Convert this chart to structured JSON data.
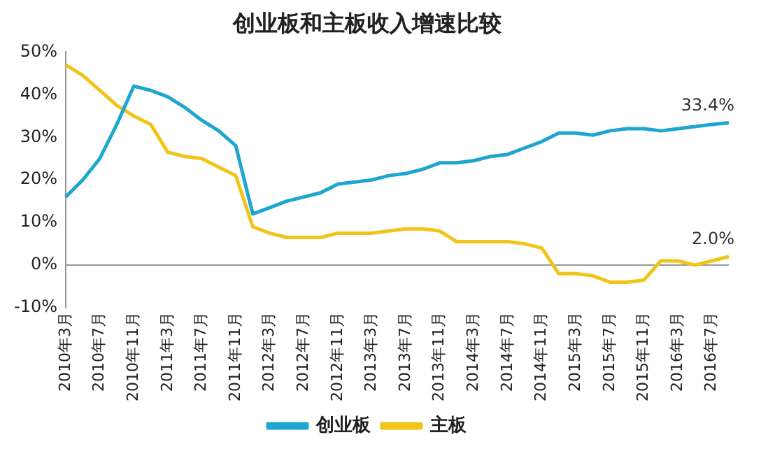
{
  "chart_data": {
    "type": "line",
    "title": "创业板和主板收入增速比较",
    "categories": [
      "2010年3月",
      null,
      "2010年7月",
      null,
      "2010年11月",
      null,
      "2011年3月",
      null,
      "2011年7月",
      null,
      "2011年11月",
      null,
      "2012年3月",
      null,
      "2012年7月",
      null,
      "2012年11月",
      null,
      "2013年3月",
      null,
      "2013年7月",
      null,
      "2013年11月",
      null,
      "2014年3月",
      null,
      "2014年7月",
      null,
      "2014年11月",
      null,
      "2015年3月",
      null,
      "2015年7月",
      null,
      "2015年11月",
      null,
      "2016年3月",
      null,
      "2016年7月",
      null
    ],
    "series": [
      {
        "name": "创业板",
        "color": "#1fa6d0",
        "values": [
          16,
          20,
          25,
          33,
          42,
          41,
          39.5,
          37,
          34,
          31.5,
          28,
          12,
          13.5,
          15,
          16,
          17,
          19,
          19.5,
          20,
          21,
          21.5,
          22.5,
          24,
          24,
          24.5,
          25.5,
          26,
          27.5,
          29,
          31,
          31,
          30.5,
          31.5,
          32,
          32,
          31.5,
          32,
          32.5,
          33,
          33.4
        ],
        "value_labels": [
          null,
          null,
          null,
          null,
          null,
          null,
          null,
          null,
          null,
          null,
          null,
          null,
          null,
          null,
          null,
          null,
          null,
          null,
          null,
          null,
          null,
          null,
          null,
          null,
          null,
          null,
          null,
          null,
          null,
          null,
          null,
          null,
          null,
          null,
          null,
          null,
          null,
          null,
          null,
          "33.4%"
        ]
      },
      {
        "name": "主板",
        "color": "#f0c419",
        "values": [
          47,
          44.5,
          41,
          37.5,
          35,
          33,
          26.5,
          25.5,
          25,
          23,
          21,
          9,
          7.5,
          6.5,
          6.5,
          6.5,
          7.5,
          7.5,
          7.5,
          8,
          8.5,
          8.5,
          8,
          5.5,
          5.5,
          5.5,
          5.5,
          5,
          4,
          -2,
          -2,
          -2.5,
          -4,
          -4,
          -3.5,
          1,
          1,
          0,
          1,
          2
        ],
        "value_labels": [
          null,
          null,
          null,
          null,
          null,
          null,
          null,
          null,
          null,
          null,
          null,
          null,
          null,
          null,
          null,
          null,
          null,
          null,
          null,
          null,
          null,
          null,
          null,
          null,
          null,
          null,
          null,
          null,
          null,
          null,
          null,
          null,
          null,
          null,
          null,
          null,
          null,
          null,
          null,
          "2.0%"
        ]
      }
    ],
    "ylim": [
      -10,
      50
    ],
    "yticks": [
      {
        "value": -10,
        "label": "-10%"
      },
      {
        "value": 0,
        "label": "0%"
      },
      {
        "value": 10,
        "label": "10%"
      },
      {
        "value": 20,
        "label": "20%"
      },
      {
        "value": 30,
        "label": "30%"
      },
      {
        "value": 40,
        "label": "40%"
      },
      {
        "value": 50,
        "label": "50%"
      }
    ],
    "ref_lines": [
      {
        "axis": "y",
        "value": 0,
        "color": "#999999"
      }
    ],
    "grid": false,
    "legend": "bottom",
    "marker": "none",
    "line_style": "solid"
  }
}
